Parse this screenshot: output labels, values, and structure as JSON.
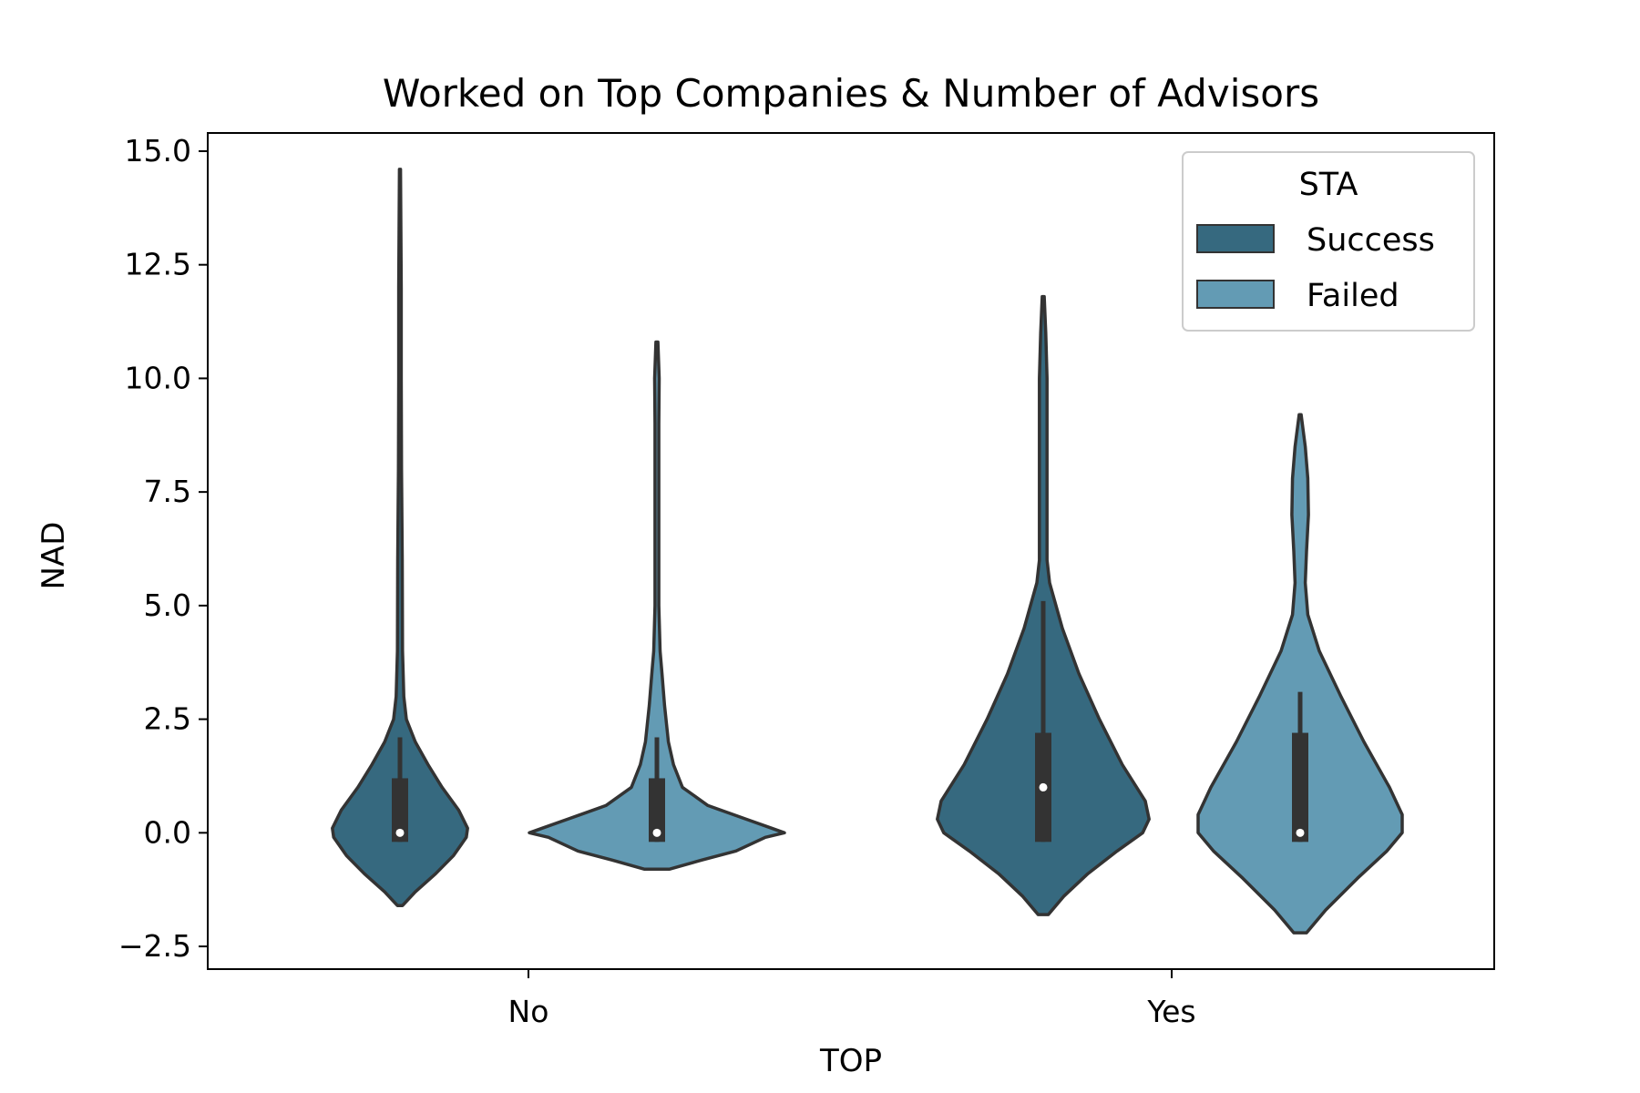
{
  "chart_data": {
    "type": "violin",
    "title": "Worked on Top Companies & Number of Advisors",
    "xlabel": "TOP",
    "ylabel": "NAD",
    "categories": [
      "No",
      "Yes"
    ],
    "ylim": [
      -3.0,
      15.4
    ],
    "yticks": [
      -2.5,
      0.0,
      2.5,
      5.0,
      7.5,
      10.0,
      12.5,
      15.0
    ],
    "ytick_labels": [
      "−2.5",
      "0.0",
      "2.5",
      "5.0",
      "7.5",
      "10.0",
      "12.5",
      "15.0"
    ],
    "grid": false,
    "legend": {
      "title": "STA",
      "placement": "top-right"
    },
    "series": [
      {
        "name": "Success",
        "color": "#36697f",
        "violins": [
          {
            "category": "No",
            "half_width": [
              [
                -1.6,
                0.02
              ],
              [
                -1.3,
                0.12
              ],
              [
                -0.9,
                0.28
              ],
              [
                -0.5,
                0.42
              ],
              [
                -0.1,
                0.52
              ],
              [
                0.1,
                0.53
              ],
              [
                0.5,
                0.46
              ],
              [
                1.0,
                0.33
              ],
              [
                1.5,
                0.22
              ],
              [
                2.0,
                0.12
              ],
              [
                2.5,
                0.05
              ],
              [
                3.0,
                0.03
              ],
              [
                4.0,
                0.02
              ],
              [
                6.0,
                0.018
              ],
              [
                8.0,
                0.012
              ],
              [
                10.0,
                0.01
              ],
              [
                12.0,
                0.01
              ],
              [
                14.6,
                0.004
              ]
            ],
            "median": 0,
            "q1": -0.2,
            "q3": 1.2,
            "whisker_low": -0.2,
            "whisker_high": 2.1
          },
          {
            "category": "Yes",
            "half_width": [
              [
                -1.8,
                0.04
              ],
              [
                -1.4,
                0.16
              ],
              [
                -0.9,
                0.35
              ],
              [
                -0.4,
                0.58
              ],
              [
                0.0,
                0.78
              ],
              [
                0.3,
                0.83
              ],
              [
                0.7,
                0.8
              ],
              [
                1.5,
                0.62
              ],
              [
                2.5,
                0.44
              ],
              [
                3.5,
                0.28
              ],
              [
                4.5,
                0.15
              ],
              [
                5.5,
                0.05
              ],
              [
                6.0,
                0.03
              ],
              [
                7.0,
                0.03
              ],
              [
                8.5,
                0.03
              ],
              [
                10.0,
                0.03
              ],
              [
                11.0,
                0.02
              ],
              [
                11.8,
                0.008
              ]
            ],
            "median": 1,
            "q1": -0.2,
            "q3": 2.2,
            "whisker_low": -0.2,
            "whisker_high": 5.1
          }
        ]
      },
      {
        "name": "Failed",
        "color": "#639bb4",
        "violins": [
          {
            "category": "No",
            "half_width": [
              [
                -0.8,
                0.1
              ],
              [
                -0.6,
                0.35
              ],
              [
                -0.4,
                0.62
              ],
              [
                -0.1,
                0.85
              ],
              [
                0.0,
                1.0
              ],
              [
                0.1,
                0.9
              ],
              [
                0.3,
                0.7
              ],
              [
                0.6,
                0.4
              ],
              [
                1.0,
                0.2
              ],
              [
                1.5,
                0.13
              ],
              [
                2.0,
                0.09
              ],
              [
                2.8,
                0.06
              ],
              [
                3.5,
                0.04
              ],
              [
                4.0,
                0.025
              ],
              [
                5.0,
                0.015
              ],
              [
                7.0,
                0.015
              ],
              [
                9.0,
                0.015
              ],
              [
                10.0,
                0.018
              ],
              [
                10.8,
                0.008
              ]
            ],
            "median": 0,
            "q1": -0.2,
            "q3": 1.2,
            "whisker_low": -0.2,
            "whisker_high": 2.1
          },
          {
            "category": "Yes",
            "half_width": [
              [
                -2.2,
                0.05
              ],
              [
                -1.7,
                0.2
              ],
              [
                -1.0,
                0.45
              ],
              [
                -0.4,
                0.68
              ],
              [
                0.0,
                0.8
              ],
              [
                0.4,
                0.8
              ],
              [
                1.0,
                0.7
              ],
              [
                2.0,
                0.5
              ],
              [
                3.0,
                0.32
              ],
              [
                4.0,
                0.15
              ],
              [
                4.8,
                0.06
              ],
              [
                5.5,
                0.04
              ],
              [
                6.2,
                0.05
              ],
              [
                7.0,
                0.065
              ],
              [
                7.8,
                0.06
              ],
              [
                8.5,
                0.04
              ],
              [
                9.2,
                0.008
              ]
            ],
            "median": 0,
            "q1": -0.2,
            "q3": 2.2,
            "whisker_low": -0.2,
            "whisker_high": 3.1
          }
        ]
      }
    ]
  }
}
